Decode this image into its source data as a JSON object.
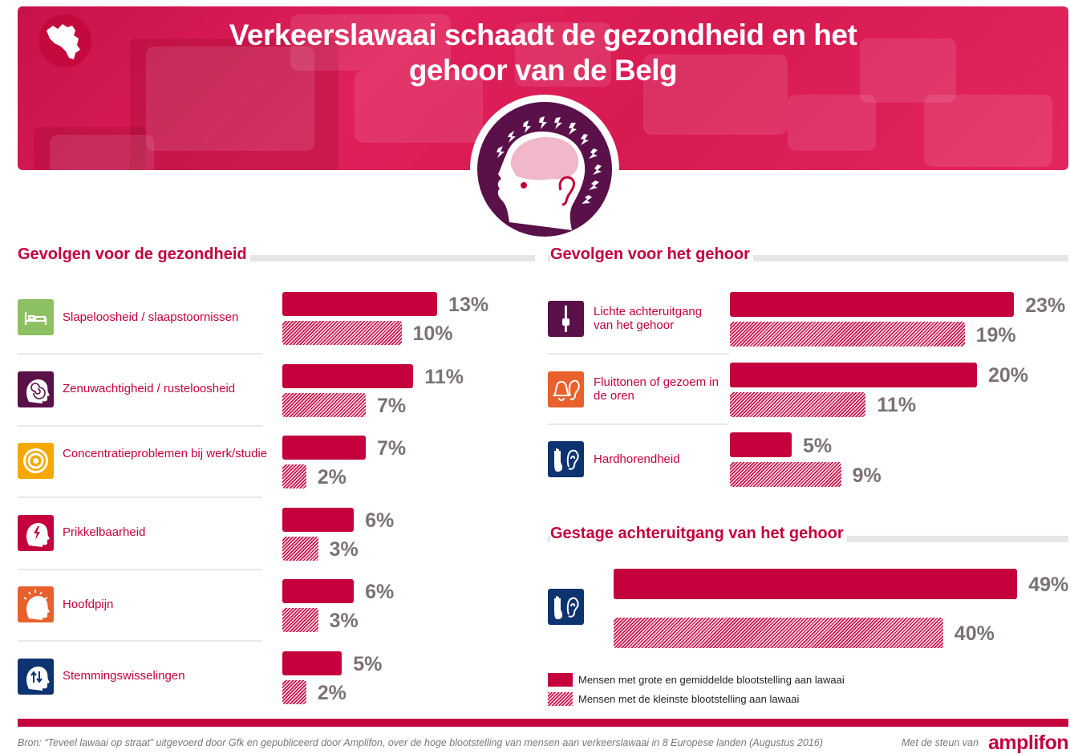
{
  "header": {
    "title_line1": "Verkeerslawaai schaadt de gezondheid en het",
    "title_line2": "gehoor van de Belg"
  },
  "colors": {
    "brand": "#c4003d",
    "value_text": "#7a7275",
    "head_badge": "#5a1049",
    "brain": "#f0b8c8"
  },
  "legend": {
    "high": "Mensen met grote en gemiddelde blootstelling aan lawaai",
    "low": "Mensen met de kleinste blootstelling aan lawaai"
  },
  "footer": {
    "source": "Bron: “Teveel lawaai op straat” uitgevoerd door Gfk en gepubliceerd door Amplifon, over de hoge blootstelling van mensen aan verkeerslawaai in 8 Europese landen (Augustus 2016)",
    "support": "Met de steun van",
    "brand": "amplifon"
  },
  "chart_data": [
    {
      "type": "bar",
      "orientation": "horizontal",
      "title": "Gevolgen voor de gezondheid",
      "categories": [
        "Slapeloosheid / slaapstoornissen",
        "Zenuwachtigheid / rusteloosheid",
        "Concentratieproblemen bij werk/studie",
        "Prikkelbaarheid",
        "Hoofdpijn",
        "Stemmingswisselingen"
      ],
      "icons": [
        "bed-icon",
        "spiral-head-icon",
        "target-icon",
        "lightning-head-icon",
        "headache-icon",
        "mood-swing-head-icon"
      ],
      "icon_colors": [
        "#8dc063",
        "#5a1049",
        "#f5a800",
        "#c4003d",
        "#e8602c",
        "#0d3370"
      ],
      "series": [
        {
          "name": "Mensen met grote en gemiddelde blootstelling aan lawaai",
          "style": "solid",
          "values": [
            13,
            11,
            7,
            6,
            6,
            5
          ],
          "labels": [
            "13%",
            "11%",
            "7%",
            "6%",
            "6%",
            "5%"
          ]
        },
        {
          "name": "Mensen met de kleinste blootstelling aan lawaai",
          "style": "hatched",
          "values": [
            10,
            7,
            2,
            3,
            3,
            2
          ],
          "labels": [
            "10%",
            "7%",
            "2%",
            "3%",
            "3%",
            "2%"
          ]
        }
      ],
      "unit": "%"
    },
    {
      "type": "bar",
      "orientation": "horizontal",
      "title": "Gevolgen voor het gehoor",
      "categories": [
        "Lichte achteruitgang van het gehoor",
        "Fluittonen of gezoem in de oren",
        "Hardhorendheid"
      ],
      "icons": [
        "hearing-slider-icon",
        "bell-ear-icon",
        "hand-ear-icon"
      ],
      "icon_colors": [
        "#5a1049",
        "#e8602c",
        "#0d3370"
      ],
      "series": [
        {
          "name": "Mensen met grote en gemiddelde blootstelling aan lawaai",
          "style": "solid",
          "values": [
            23,
            20,
            5
          ],
          "labels": [
            "23%",
            "20%",
            "5%"
          ]
        },
        {
          "name": "Mensen met de kleinste blootstelling aan lawaai",
          "style": "hatched",
          "values": [
            19,
            11,
            9
          ],
          "labels": [
            "19%",
            "11%",
            "9%"
          ]
        }
      ],
      "unit": "%"
    },
    {
      "type": "bar",
      "orientation": "horizontal",
      "title": "Gestage achteruitgang van het gehoor",
      "categories": [
        "Gestage achteruitgang van het gehoor"
      ],
      "icons": [
        "hand-ear-icon"
      ],
      "icon_colors": [
        "#0d3370"
      ],
      "series": [
        {
          "name": "Mensen met grote en gemiddelde blootstelling aan lawaai",
          "style": "solid",
          "values": [
            49
          ],
          "labels": [
            "49%"
          ]
        },
        {
          "name": "Mensen met de kleinste blootstelling aan lawaai",
          "style": "hatched",
          "values": [
            40
          ],
          "labels": [
            "40%"
          ]
        }
      ],
      "unit": "%"
    }
  ]
}
